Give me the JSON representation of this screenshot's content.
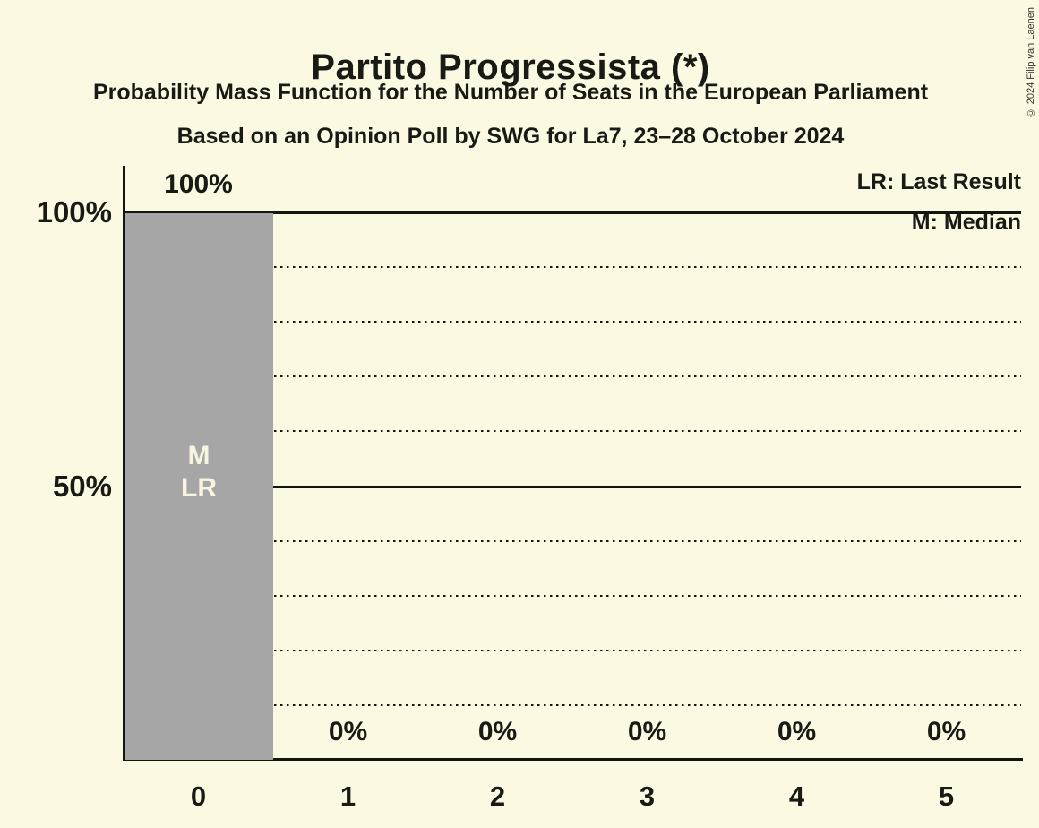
{
  "title": "Partito Progressista (*)",
  "subtitles": [
    "Probability Mass Function for the Number of Seats in the European Parliament",
    "Based on an Opinion Poll by SWG for La7, 23–28 October 2024"
  ],
  "copyright": "© 2024 Filip van Laenen",
  "legend": {
    "last_result": "LR: Last Result",
    "median": "M: Median"
  },
  "colors": {
    "background": "#FCF9E3",
    "bar": "#A6A6A6",
    "text": "#1a1a14",
    "bar_annotation_text": "#F8F4DF",
    "axis_and_grid": "#15150f"
  },
  "chart_data": {
    "type": "bar",
    "title": "Partito Progressista (*)",
    "categories": [
      "0",
      "1",
      "2",
      "3",
      "4",
      "5"
    ],
    "values": [
      100,
      0,
      0,
      0,
      0,
      0
    ],
    "value_labels": [
      "100%",
      "0%",
      "0%",
      "0%",
      "0%",
      "0%"
    ],
    "bar_annotations": [
      [
        "M",
        "LR"
      ],
      [],
      [],
      [],
      [],
      []
    ],
    "median_category": "0",
    "last_result_category": "0",
    "y_ticks": [
      {
        "value": 100,
        "label": "100%"
      },
      {
        "value": 50,
        "label": "50%"
      }
    ],
    "ylim": [
      0,
      100
    ],
    "gridline_step": 10,
    "solid_gridlines": [
      50,
      100
    ],
    "grid": "horizontal-dotted",
    "legend_position": "top-right"
  }
}
